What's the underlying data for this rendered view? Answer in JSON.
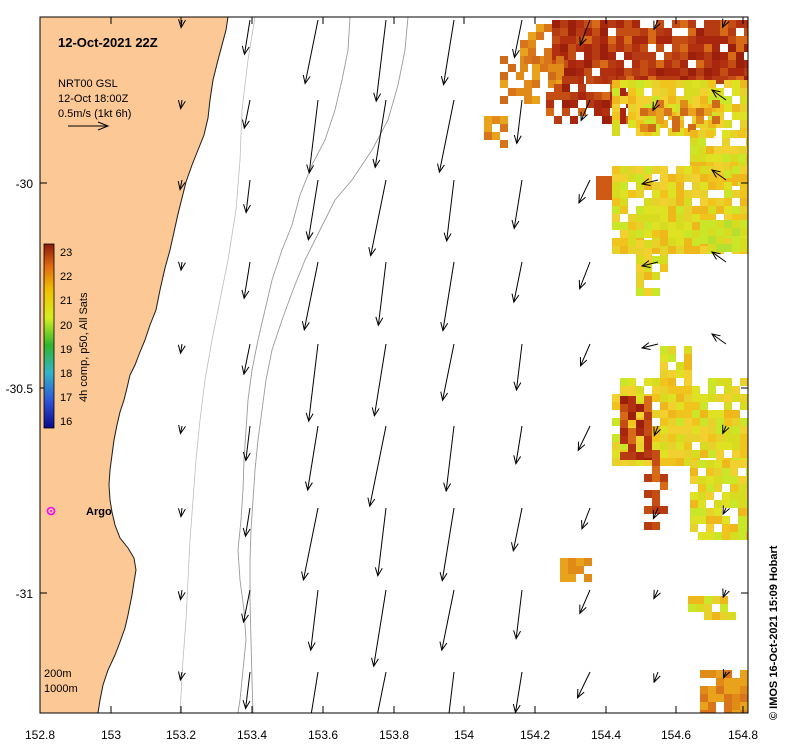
{
  "map": {
    "title": "12-Oct-2021 22Z",
    "product": {
      "line1": "NRT00 GSL",
      "line2": "12-Oct 18:00Z",
      "line3": "0.5m/s (1kt 6h)"
    },
    "colorbar": {
      "label": "4h comp, p50, All Sats",
      "ticks": [
        "23",
        "22",
        "21",
        "20",
        "19",
        "18",
        "17",
        "16"
      ],
      "min": 16,
      "max": 23
    },
    "x_ticks": [
      "152.8",
      "153",
      "153.2",
      "153.4",
      "153.6",
      "153.8",
      "154",
      "154.2",
      "154.4",
      "154.6",
      "154.8"
    ],
    "y_ticks": [
      "-30",
      "-30.5",
      "-31"
    ],
    "argo_label": "Argo",
    "depth_contours": {
      "line1": "200m",
      "line2": "1000m"
    },
    "credit": "© IMOS 16-Oct-2021 15:09 Hobart",
    "colors": {
      "land": "#fbc896",
      "land_edge": "#1a1a1a",
      "argo": "#ff00ff",
      "contour": "#9a9a9a",
      "arrow": "#000000"
    }
  }
}
